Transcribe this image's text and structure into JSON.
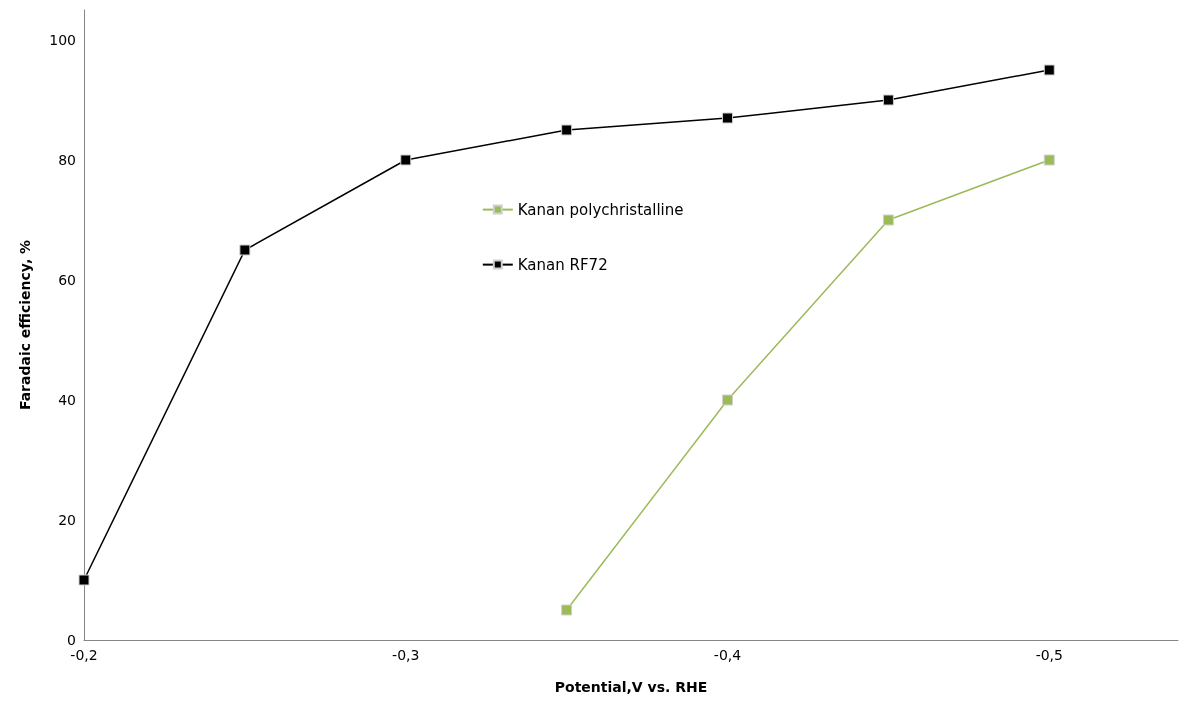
{
  "chart_data": {
    "type": "line",
    "xlabel": "Potential,V vs. RHE",
    "ylabel": "Faradaic efficiency, %",
    "xlim": [
      -0.2,
      -0.54
    ],
    "xticks": [
      {
        "value": -0.2,
        "label": "-0,2"
      },
      {
        "value": -0.3,
        "label": "-0,3"
      },
      {
        "value": -0.4,
        "label": "-0,4"
      },
      {
        "value": -0.5,
        "label": "-0,5"
      }
    ],
    "ylim": [
      0,
      105
    ],
    "yticks": [
      0,
      20,
      40,
      60,
      80,
      100
    ],
    "series": [
      {
        "name": "Kanan polychristalline",
        "color": "#9bbb59",
        "x": [
          -0.35,
          -0.4,
          -0.45,
          -0.5
        ],
        "values": [
          5,
          40,
          70,
          80
        ]
      },
      {
        "name": "Kanan RF72",
        "color": "#000000",
        "x": [
          -0.2,
          -0.25,
          -0.3,
          -0.35,
          -0.4,
          -0.45,
          -0.5
        ],
        "values": [
          10,
          65,
          80,
          85,
          87,
          90,
          95
        ]
      }
    ],
    "marker": "square",
    "grid": false,
    "legend": "center"
  }
}
